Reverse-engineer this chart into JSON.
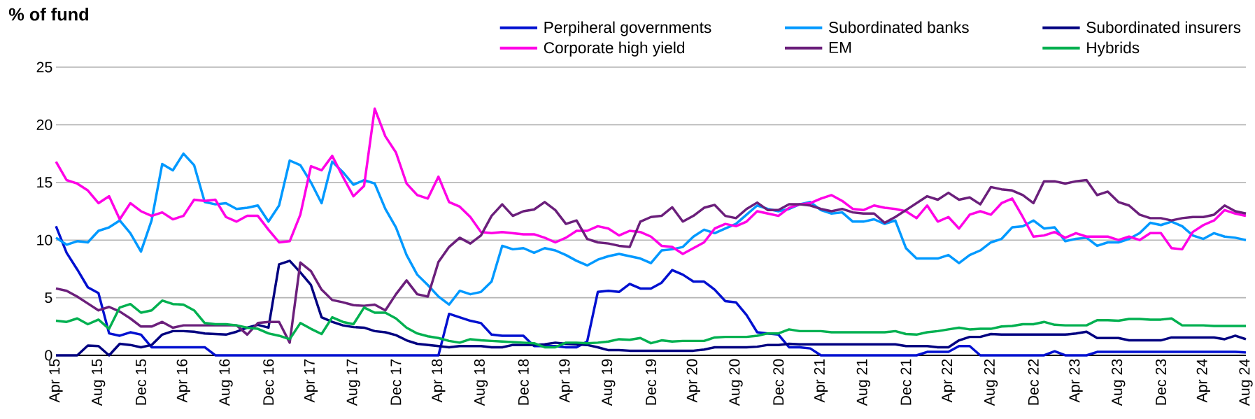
{
  "chart_data": {
    "type": "line",
    "title": "% of fund",
    "categories": [
      "Apr 15",
      null,
      null,
      null,
      "Aug 15",
      null,
      null,
      null,
      "Dec 15",
      null,
      null,
      null,
      "Apr 16",
      null,
      null,
      null,
      "Aug 16",
      null,
      null,
      null,
      "Dec 16",
      null,
      null,
      null,
      "Apr 17",
      null,
      null,
      null,
      "Aug 17",
      null,
      null,
      null,
      "Dec 17",
      null,
      null,
      null,
      "Apr 18",
      null,
      null,
      null,
      "Aug 18",
      null,
      null,
      null,
      "Dec 18",
      null,
      null,
      null,
      "Apr 19",
      null,
      null,
      null,
      "Aug 19",
      null,
      null,
      null,
      "Dec 19",
      null,
      null,
      null,
      "Apr 20",
      null,
      null,
      null,
      "Aug 20",
      null,
      null,
      null,
      "Dec 20",
      null,
      null,
      null,
      "Apr 21",
      null,
      null,
      null,
      "Aug 21",
      null,
      null,
      null,
      "Dec 21",
      null,
      null,
      null,
      "Apr 22",
      null,
      null,
      null,
      "Aug 22",
      null,
      null,
      null,
      "Dec 22",
      null,
      null,
      null,
      "Apr 23",
      null,
      null,
      null,
      "Aug 23",
      null,
      null,
      null,
      "Dec 23",
      null,
      null,
      null,
      "Apr 24",
      null,
      null,
      null,
      "Aug 24"
    ],
    "series": [
      {
        "name": "Perpiheral governments",
        "color": "#0010d0",
        "values": [
          11.2,
          8.9,
          7.45,
          5.9,
          5.4,
          1.9,
          1.7,
          2.0,
          1.8,
          0.7,
          0.7,
          0.7,
          0.7,
          0.7,
          0.7,
          0,
          0,
          0,
          0,
          0,
          0,
          0,
          0,
          0,
          0,
          0,
          0,
          0,
          0,
          0,
          0,
          0,
          0,
          0,
          0,
          0,
          0,
          3.6,
          3.3,
          3.0,
          2.8,
          1.8,
          1.7,
          1.7,
          1.7,
          0.8,
          0.8,
          0.8,
          0.7,
          0.7,
          1.2,
          5.5,
          5.6,
          5.5,
          6.2,
          5.8,
          5.8,
          6.3,
          7.4,
          7.0,
          6.4,
          6.4,
          5.7,
          4.7,
          4.6,
          3.5,
          2.0,
          1.9,
          1.8,
          0.7,
          0.7,
          0.6,
          0,
          0,
          0,
          0,
          0,
          0,
          0,
          0,
          0,
          0,
          0.3,
          0.3,
          0.3,
          0.8,
          0.8,
          0,
          0,
          0,
          0,
          0,
          0,
          0,
          0.35,
          0,
          0,
          0,
          0.3,
          0.3,
          0.3,
          0.3,
          0.3,
          0.3,
          0.3,
          0.3,
          0.3,
          0.3,
          0.3,
          0.3,
          0.3,
          0.3,
          0.25
        ]
      },
      {
        "name": "Subordinated banks",
        "color": "#0099ff",
        "values": [
          10.2,
          9.6,
          9.9,
          9.8,
          10.8,
          11.1,
          11.7,
          10.6,
          9.0,
          11.7,
          16.6,
          16.05,
          17.5,
          16.5,
          13.3,
          13.1,
          13.2,
          12.7,
          12.8,
          13.0,
          11.6,
          13.0,
          16.9,
          16.5,
          15.0,
          13.2,
          16.8,
          15.9,
          14.8,
          15.2,
          14.9,
          12.7,
          11.1,
          8.7,
          7.0,
          6.1,
          5.1,
          4.4,
          5.6,
          5.3,
          5.5,
          6.4,
          9.5,
          9.2,
          9.3,
          8.9,
          9.3,
          9.1,
          8.7,
          8.2,
          7.8,
          8.3,
          8.6,
          8.8,
          8.6,
          8.4,
          8.0,
          9.1,
          9.2,
          9.4,
          10.3,
          10.9,
          10.6,
          11.0,
          11.4,
          12.2,
          13.0,
          12.7,
          12.5,
          12.7,
          13.1,
          13.3,
          12.6,
          12.3,
          12.4,
          11.6,
          11.6,
          11.8,
          11.4,
          11.7,
          9.3,
          8.4,
          8.4,
          8.4,
          8.7,
          8.0,
          8.7,
          9.1,
          9.8,
          10.1,
          11.1,
          11.2,
          11.7,
          11.0,
          11.1,
          9.9,
          10.1,
          10.2,
          9.5,
          9.8,
          9.8,
          10.1,
          10.6,
          11.5,
          11.3,
          11.6,
          11.2,
          10.4,
          10.1,
          10.6,
          10.3,
          10.2,
          10.0
        ]
      },
      {
        "name": "Subordinated insurers",
        "color": "#000080",
        "values": [
          0,
          0,
          0,
          0.85,
          0.8,
          0,
          1.0,
          0.9,
          0.7,
          0.9,
          1.8,
          2.1,
          2.1,
          2.05,
          1.9,
          1.85,
          1.8,
          2.05,
          2.4,
          2.65,
          2.4,
          7.9,
          8.2,
          7.2,
          6.1,
          3.3,
          2.9,
          2.6,
          2.45,
          2.4,
          2.1,
          2.0,
          1.75,
          1.3,
          1.0,
          0.9,
          0.8,
          0.7,
          0.8,
          0.8,
          0.8,
          0.7,
          0.7,
          0.9,
          0.9,
          0.9,
          0.95,
          1.1,
          1.0,
          0.95,
          0.9,
          0.7,
          0.45,
          0.45,
          0.4,
          0.4,
          0.4,
          0.4,
          0.4,
          0.4,
          0.4,
          0.5,
          0.7,
          0.7,
          0.7,
          0.7,
          0.75,
          0.9,
          0.9,
          1.0,
          0.95,
          0.95,
          0.95,
          0.95,
          0.95,
          0.95,
          0.95,
          0.95,
          0.95,
          0.95,
          0.8,
          0.8,
          0.8,
          0.7,
          0.7,
          1.3,
          1.6,
          1.6,
          1.85,
          1.8,
          1.8,
          1.8,
          1.8,
          1.8,
          1.8,
          1.8,
          1.9,
          2.05,
          1.5,
          1.5,
          1.5,
          1.3,
          1.3,
          1.3,
          1.3,
          1.55,
          1.55,
          1.55,
          1.55,
          1.55,
          1.4,
          1.7,
          1.4
        ]
      },
      {
        "name": "Corporate high yield",
        "color": "#ff00e6",
        "values": [
          16.8,
          15.2,
          14.9,
          14.3,
          13.2,
          13.8,
          11.8,
          13.2,
          12.5,
          12.1,
          12.4,
          11.8,
          12.1,
          13.5,
          13.4,
          13.5,
          12.0,
          11.6,
          12.1,
          12.1,
          10.9,
          9.8,
          9.9,
          12.2,
          16.4,
          16.05,
          17.3,
          15.5,
          13.8,
          14.7,
          21.4,
          19.0,
          17.6,
          14.9,
          13.9,
          13.6,
          15.5,
          13.3,
          12.9,
          12.0,
          10.7,
          10.6,
          10.7,
          10.6,
          10.5,
          10.5,
          10.2,
          9.8,
          10.2,
          10.8,
          10.8,
          11.2,
          11.0,
          10.4,
          10.8,
          10.7,
          10.3,
          9.5,
          9.4,
          8.8,
          9.3,
          9.8,
          11.0,
          11.4,
          11.2,
          11.6,
          12.5,
          12.3,
          12.1,
          12.8,
          13.1,
          13.2,
          13.6,
          13.9,
          13.4,
          12.7,
          12.6,
          13.0,
          12.8,
          12.7,
          12.5,
          11.9,
          13.0,
          11.6,
          12.0,
          11.0,
          12.2,
          12.5,
          12.2,
          13.2,
          13.6,
          12.0,
          10.3,
          10.4,
          10.7,
          10.2,
          10.6,
          10.3,
          10.3,
          10.3,
          10.0,
          10.3,
          10.0,
          10.6,
          10.6,
          9.3,
          9.2,
          10.7,
          11.3,
          11.7,
          12.6,
          12.3,
          12.1
        ]
      },
      {
        "name": "EM",
        "color": "#6b1f7b",
        "values": [
          5.8,
          5.6,
          5.1,
          4.5,
          3.9,
          4.2,
          3.8,
          3.2,
          2.5,
          2.5,
          2.9,
          2.4,
          2.6,
          2.6,
          2.6,
          2.6,
          2.6,
          2.6,
          1.8,
          2.8,
          2.9,
          2.9,
          1.1,
          8.05,
          7.3,
          5.7,
          4.8,
          4.6,
          4.35,
          4.3,
          4.4,
          3.9,
          5.3,
          6.5,
          5.3,
          5.1,
          8.1,
          9.4,
          10.2,
          9.7,
          10.4,
          12.1,
          13.1,
          12.1,
          12.5,
          12.65,
          13.3,
          12.6,
          11.4,
          11.7,
          10.1,
          9.8,
          9.7,
          9.5,
          9.4,
          11.6,
          12.0,
          12.1,
          12.85,
          11.6,
          12.1,
          12.8,
          13.05,
          12.1,
          11.9,
          12.7,
          13.25,
          12.6,
          12.6,
          13.1,
          13.1,
          13.0,
          12.7,
          12.5,
          12.7,
          12.4,
          12.3,
          12.3,
          11.5,
          12.0,
          12.6,
          13.2,
          13.8,
          13.5,
          14.1,
          13.5,
          13.7,
          13.1,
          14.6,
          14.4,
          14.3,
          13.9,
          13.2,
          15.1,
          15.1,
          14.9,
          15.1,
          15.2,
          13.9,
          14.2,
          13.3,
          13.0,
          12.2,
          11.9,
          11.9,
          11.7,
          11.9,
          12.0,
          12.0,
          12.2,
          13.0,
          12.5,
          12.3
        ]
      },
      {
        "name": "Hybrids",
        "color": "#00b050",
        "values": [
          3.0,
          2.9,
          3.2,
          2.7,
          3.1,
          2.3,
          4.15,
          4.45,
          3.7,
          3.9,
          4.75,
          4.45,
          4.4,
          3.9,
          2.8,
          2.7,
          2.7,
          2.6,
          2.4,
          2.3,
          1.9,
          1.7,
          1.4,
          2.8,
          2.3,
          1.85,
          3.3,
          2.9,
          2.7,
          4.15,
          3.7,
          3.7,
          3.2,
          2.4,
          1.9,
          1.65,
          1.5,
          1.25,
          1.1,
          1.4,
          1.3,
          1.25,
          1.2,
          1.15,
          1.1,
          1.05,
          0.7,
          0.7,
          1.1,
          1.1,
          1.05,
          1.1,
          1.2,
          1.4,
          1.35,
          1.5,
          1.05,
          1.3,
          1.2,
          1.25,
          1.25,
          1.25,
          1.55,
          1.6,
          1.6,
          1.6,
          1.7,
          1.9,
          1.9,
          2.25,
          2.1,
          2.1,
          2.1,
          2.0,
          2.0,
          2.0,
          2.0,
          2.0,
          2.0,
          2.1,
          1.85,
          1.8,
          2.0,
          2.1,
          2.25,
          2.4,
          2.25,
          2.3,
          2.3,
          2.5,
          2.55,
          2.7,
          2.7,
          2.9,
          2.65,
          2.6,
          2.6,
          2.6,
          3.05,
          3.05,
          3.0,
          3.15,
          3.15,
          3.1,
          3.1,
          3.2,
          2.6,
          2.6,
          2.6,
          2.55,
          2.55,
          2.55,
          2.55
        ]
      }
    ],
    "ylim": [
      0,
      25
    ],
    "yticks": [
      0,
      5,
      10,
      15,
      20,
      25
    ],
    "grid": "y",
    "legend": "top right"
  }
}
